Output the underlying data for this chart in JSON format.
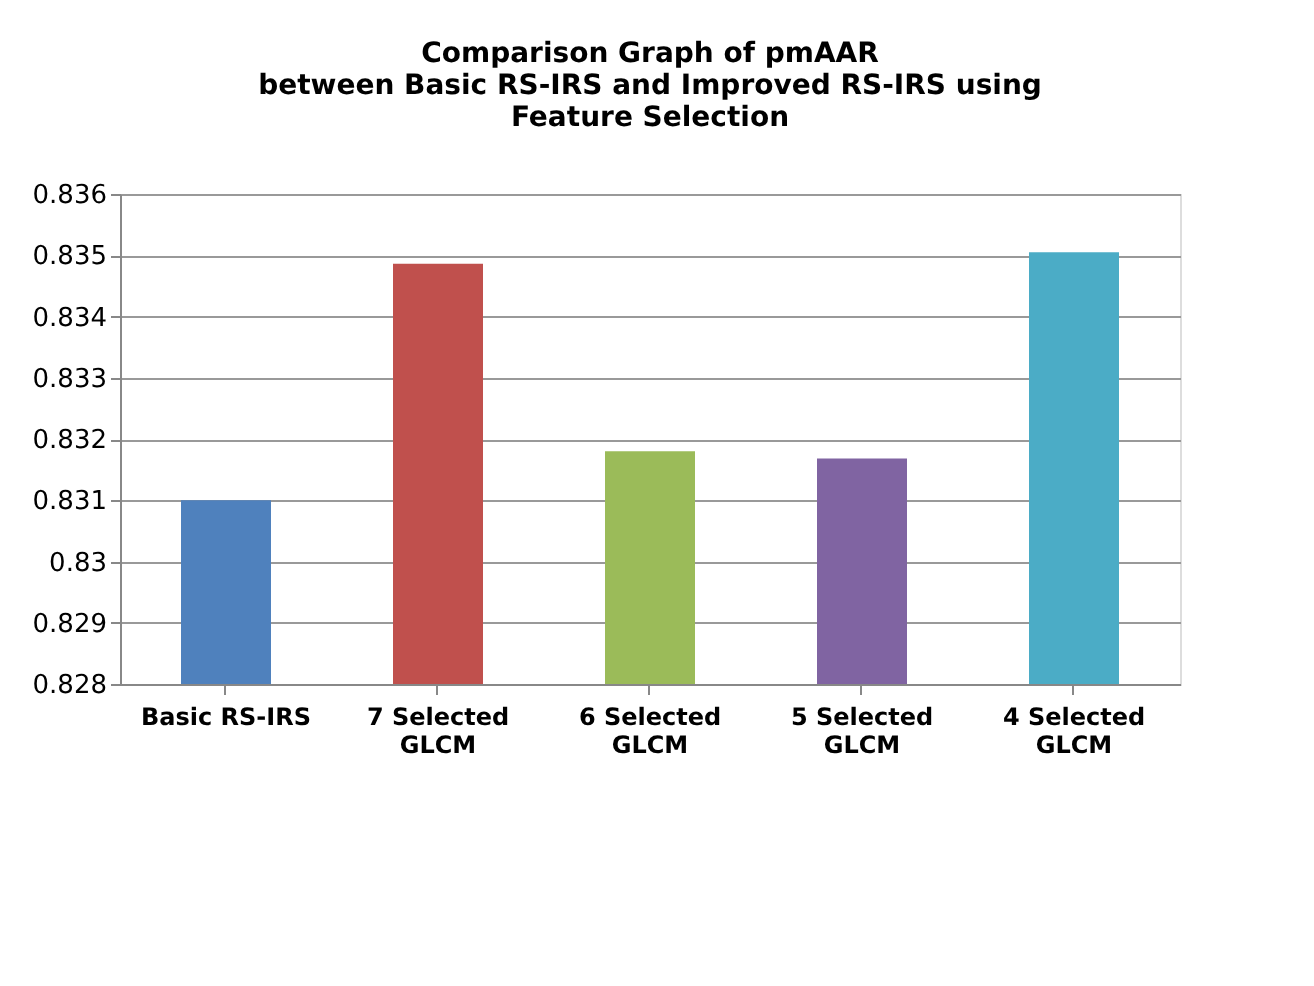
{
  "chart_data": {
    "type": "bar",
    "title": [
      "Comparison Graph of pmAAR",
      "between Basic RS-IRS and Improved RS-IRS using",
      "Feature Selection"
    ],
    "categories": [
      "Basic RS-IRS",
      "7 Selected GLCM",
      "6 Selected GLCM",
      "5 Selected GLCM",
      "4 Selected GLCM"
    ],
    "values": [
      0.831,
      0.83486,
      0.8318,
      0.83168,
      0.83505
    ],
    "colors": [
      "#4f81bd",
      "#c0504d",
      "#9bbb59",
      "#8064a2",
      "#4bacc6"
    ],
    "ylim": [
      0.828,
      0.836
    ],
    "yticks": [
      0.828,
      0.829,
      {
        "value": 0.83,
        "label": "0.83"
      },
      0.831,
      0.832,
      0.833,
      0.834,
      0.835,
      0.836
    ],
    "grid": "y"
  }
}
